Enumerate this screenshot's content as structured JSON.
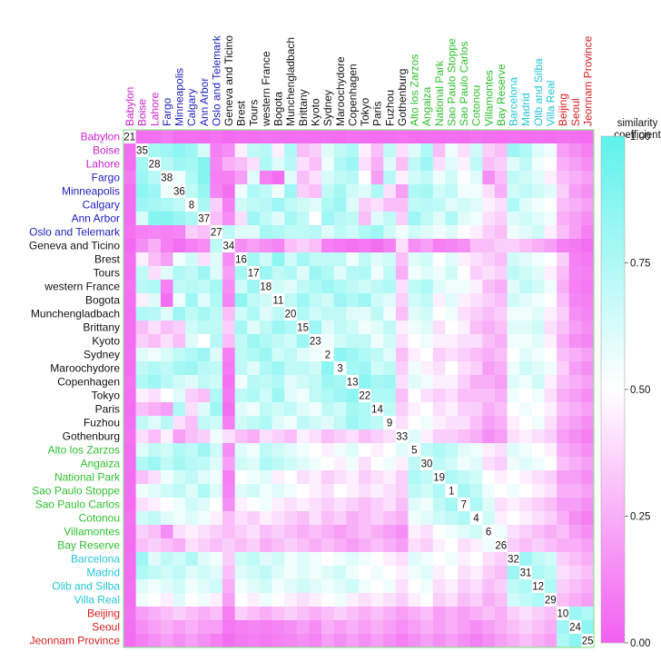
{
  "chart_data": {
    "type": "heatmap",
    "title": "",
    "legend": {
      "title_line1": "similarity",
      "title_line2": "coefficient",
      "ticks": [
        "1.00",
        "0.75",
        "0.50",
        "0.25",
        "0.00"
      ],
      "range": [
        0,
        1
      ],
      "color_high": "#5ef2ec",
      "color_mid": "#ffffff",
      "color_low": "#f25ff0"
    },
    "group_colors": {
      "magenta": "#cc22cc",
      "blue": "#1f1fbf",
      "black": "#111111",
      "green": "#2fbf2f",
      "cyan": "#22c6d6",
      "red": "#d41f1f"
    },
    "labels": [
      {
        "name": "Babylon",
        "group": "magenta",
        "diag": "21"
      },
      {
        "name": "Boise",
        "group": "magenta",
        "diag": "35"
      },
      {
        "name": "Lahore",
        "group": "magenta",
        "diag": "28"
      },
      {
        "name": "Fargo",
        "group": "blue",
        "diag": "38"
      },
      {
        "name": "Minneapolis",
        "group": "blue",
        "diag": "36"
      },
      {
        "name": "Calgary",
        "group": "blue",
        "diag": "8"
      },
      {
        "name": "Ann Arbor",
        "group": "blue",
        "diag": "37"
      },
      {
        "name": "Oslo and Telemark",
        "group": "blue",
        "diag": "27"
      },
      {
        "name": "Geneva and Ticino",
        "group": "black",
        "diag": "34"
      },
      {
        "name": "Brest",
        "group": "black",
        "diag": "16"
      },
      {
        "name": "Tours",
        "group": "black",
        "diag": "17"
      },
      {
        "name": "western France",
        "group": "black",
        "diag": "18"
      },
      {
        "name": "Bogota",
        "group": "black",
        "diag": "11"
      },
      {
        "name": "Munchengladbach",
        "group": "black",
        "diag": "20"
      },
      {
        "name": "Brittany",
        "group": "black",
        "diag": "15"
      },
      {
        "name": "Kyoto",
        "group": "black",
        "diag": "23"
      },
      {
        "name": "Sydney",
        "group": "black",
        "diag": "2"
      },
      {
        "name": "Maroochydore",
        "group": "black",
        "diag": "3"
      },
      {
        "name": "Copenhagen",
        "group": "black",
        "diag": "13"
      },
      {
        "name": "Tokyo",
        "group": "black",
        "diag": "22"
      },
      {
        "name": "Paris",
        "group": "black",
        "diag": "14"
      },
      {
        "name": "Fuzhou",
        "group": "black",
        "diag": "9"
      },
      {
        "name": "Gothenburg",
        "group": "black",
        "diag": "33"
      },
      {
        "name": "Alto los Zarzos",
        "group": "green",
        "diag": "5"
      },
      {
        "name": "Angaiza",
        "group": "green",
        "diag": "30"
      },
      {
        "name": "National Park",
        "group": "green",
        "diag": "19"
      },
      {
        "name": "Sao Paulo Stoppe",
        "group": "green",
        "diag": "1"
      },
      {
        "name": "Sao Paulo Carlos",
        "group": "green",
        "diag": "7"
      },
      {
        "name": "Cotonou",
        "group": "green",
        "diag": "4"
      },
      {
        "name": "Villamontes",
        "group": "green",
        "diag": "6"
      },
      {
        "name": "Bay Reserve",
        "group": "green",
        "diag": "26"
      },
      {
        "name": "Barcelona",
        "group": "cyan",
        "diag": "32"
      },
      {
        "name": "Madrid",
        "group": "cyan",
        "diag": "31"
      },
      {
        "name": "Olib and Silba",
        "group": "cyan",
        "diag": "12"
      },
      {
        "name": "Villa Real",
        "group": "cyan",
        "diag": "29"
      },
      {
        "name": "Beijing",
        "group": "red",
        "diag": "10"
      },
      {
        "name": "Seoul",
        "group": "red",
        "diag": "24"
      },
      {
        "name": "Jeonnam Province",
        "group": "red",
        "diag": "25"
      }
    ],
    "matrix_note": "Lower-triangle similarity coefficients (0-1), row i lists values for columns 0..i-1; matrix is symmetric; diagonal cells show the sample number.",
    "matrix_lower": [
      [],
      [
        0.05
      ],
      [
        0.05,
        0.78
      ],
      [
        0.08,
        0.8,
        0.72
      ],
      [
        0.04,
        0.85,
        0.8,
        0.55
      ],
      [
        0.05,
        0.8,
        0.78,
        0.75,
        0.7
      ],
      [
        0.04,
        0.62,
        0.88,
        0.88,
        0.82,
        0.76
      ],
      [
        0.06,
        0.1,
        0.12,
        0.1,
        0.12,
        0.35,
        0.3
      ],
      [
        0.03,
        0.15,
        0.25,
        0.1,
        0.05,
        0.1,
        0.14,
        0.7
      ],
      [
        0.05,
        0.45,
        0.3,
        0.2,
        0.55,
        0.65,
        0.4,
        0.6,
        0.15
      ],
      [
        0.04,
        0.7,
        0.4,
        0.6,
        0.75,
        0.7,
        0.8,
        0.6,
        0.2,
        0.78
      ],
      [
        0.06,
        0.72,
        0.75,
        0.1,
        0.7,
        0.72,
        0.7,
        0.78,
        0.15,
        0.65,
        0.8
      ],
      [
        0.05,
        0.45,
        0.6,
        0.05,
        0.55,
        0.8,
        0.6,
        0.75,
        0.12,
        0.85,
        0.7,
        0.65
      ],
      [
        0.04,
        0.75,
        0.72,
        0.6,
        0.8,
        0.7,
        0.78,
        0.7,
        0.3,
        0.65,
        0.75,
        0.6,
        0.7
      ],
      [
        0.05,
        0.3,
        0.4,
        0.3,
        0.35,
        0.65,
        0.7,
        0.7,
        0.35,
        0.78,
        0.6,
        0.7,
        0.8,
        0.75
      ],
      [
        0.04,
        0.35,
        0.3,
        0.4,
        0.3,
        0.6,
        0.5,
        0.72,
        0.3,
        0.7,
        0.8,
        0.75,
        0.7,
        0.65,
        0.8
      ],
      [
        0.05,
        0.6,
        0.55,
        0.62,
        0.7,
        0.75,
        0.8,
        0.6,
        0.1,
        0.7,
        0.75,
        0.8,
        0.65,
        0.7,
        0.6,
        0.55
      ],
      [
        0.04,
        0.7,
        0.75,
        0.7,
        0.78,
        0.8,
        0.72,
        0.7,
        0.08,
        0.7,
        0.6,
        0.75,
        0.8,
        0.7,
        0.7,
        0.65,
        0.85
      ],
      [
        0.06,
        0.75,
        0.8,
        0.72,
        0.65,
        0.6,
        0.7,
        0.65,
        0.06,
        0.55,
        0.72,
        0.7,
        0.75,
        0.6,
        0.65,
        0.7,
        0.8,
        0.78
      ],
      [
        0.05,
        0.45,
        0.4,
        0.5,
        0.6,
        0.35,
        0.3,
        0.75,
        0.08,
        0.7,
        0.75,
        0.65,
        0.8,
        0.6,
        0.55,
        0.7,
        0.75,
        0.8,
        0.85
      ],
      [
        0.04,
        0.3,
        0.25,
        0.2,
        0.75,
        0.4,
        0.6,
        0.8,
        0.05,
        0.6,
        0.55,
        0.7,
        0.65,
        0.7,
        0.6,
        0.55,
        0.7,
        0.65,
        0.78,
        0.75
      ],
      [
        0.05,
        0.7,
        0.6,
        0.72,
        0.4,
        0.3,
        0.7,
        0.65,
        0.1,
        0.65,
        0.7,
        0.75,
        0.6,
        0.55,
        0.7,
        0.65,
        0.6,
        0.7,
        0.8,
        0.75,
        0.7
      ],
      [
        0.06,
        0.4,
        0.3,
        0.45,
        0.2,
        0.3,
        0.35,
        0.55,
        0.4,
        0.3,
        0.25,
        0.4,
        0.35,
        0.3,
        0.45,
        0.4,
        0.3,
        0.35,
        0.4,
        0.3,
        0.35,
        0.4
      ],
      [
        0.04,
        0.6,
        0.7,
        0.65,
        0.75,
        0.7,
        0.8,
        0.65,
        0.15,
        0.6,
        0.55,
        0.7,
        0.65,
        0.6,
        0.55,
        0.5,
        0.45,
        0.55,
        0.6,
        0.5,
        0.45,
        0.5,
        0.6
      ],
      [
        0.05,
        0.75,
        0.8,
        0.7,
        0.78,
        0.72,
        0.7,
        0.6,
        0.2,
        0.65,
        0.6,
        0.75,
        0.7,
        0.65,
        0.6,
        0.55,
        0.5,
        0.45,
        0.55,
        0.4,
        0.5,
        0.55,
        0.45,
        0.7
      ],
      [
        0.04,
        0.3,
        0.4,
        0.55,
        0.65,
        0.7,
        0.6,
        0.55,
        0.1,
        0.5,
        0.55,
        0.6,
        0.45,
        0.5,
        0.4,
        0.45,
        0.35,
        0.4,
        0.45,
        0.35,
        0.4,
        0.45,
        0.35,
        0.75,
        0.7
      ],
      [
        0.05,
        0.55,
        0.6,
        0.65,
        0.7,
        0.6,
        0.75,
        0.6,
        0.12,
        0.6,
        0.65,
        0.55,
        0.6,
        0.55,
        0.5,
        0.45,
        0.4,
        0.5,
        0.45,
        0.4,
        0.45,
        0.4,
        0.35,
        0.7,
        0.65,
        0.75
      ],
      [
        0.04,
        0.4,
        0.45,
        0.5,
        0.55,
        0.65,
        0.6,
        0.5,
        0.15,
        0.45,
        0.5,
        0.55,
        0.45,
        0.4,
        0.45,
        0.4,
        0.35,
        0.4,
        0.35,
        0.3,
        0.35,
        0.4,
        0.3,
        0.6,
        0.55,
        0.7,
        0.78
      ],
      [
        0.06,
        0.65,
        0.7,
        0.6,
        0.55,
        0.6,
        0.55,
        0.45,
        0.3,
        0.4,
        0.35,
        0.45,
        0.4,
        0.35,
        0.3,
        0.4,
        0.3,
        0.35,
        0.25,
        0.3,
        0.35,
        0.3,
        0.25,
        0.55,
        0.6,
        0.65,
        0.7,
        0.75
      ],
      [
        0.05,
        0.35,
        0.3,
        0.15,
        0.4,
        0.45,
        0.4,
        0.35,
        0.3,
        0.35,
        0.4,
        0.3,
        0.35,
        0.3,
        0.25,
        0.3,
        0.25,
        0.2,
        0.25,
        0.3,
        0.25,
        0.2,
        0.15,
        0.45,
        0.4,
        0.5,
        0.55,
        0.6,
        0.65
      ],
      [
        0.04,
        0.3,
        0.35,
        0.3,
        0.25,
        0.4,
        0.35,
        0.3,
        0.35,
        0.3,
        0.35,
        0.25,
        0.3,
        0.35,
        0.3,
        0.25,
        0.3,
        0.25,
        0.2,
        0.25,
        0.3,
        0.25,
        0.2,
        0.4,
        0.35,
        0.45,
        0.5,
        0.4,
        0.45,
        0.55
      ],
      [
        0.05,
        0.8,
        0.6,
        0.7,
        0.65,
        0.75,
        0.6,
        0.55,
        0.35,
        0.65,
        0.7,
        0.6,
        0.65,
        0.55,
        0.6,
        0.55,
        0.5,
        0.55,
        0.6,
        0.55,
        0.5,
        0.45,
        0.4,
        0.6,
        0.55,
        0.5,
        0.55,
        0.45,
        0.5,
        0.4,
        0.35
      ],
      [
        0.04,
        0.75,
        0.7,
        0.65,
        0.7,
        0.6,
        0.65,
        0.6,
        0.3,
        0.6,
        0.65,
        0.7,
        0.6,
        0.55,
        0.6,
        0.55,
        0.6,
        0.65,
        0.55,
        0.5,
        0.55,
        0.5,
        0.45,
        0.55,
        0.6,
        0.45,
        0.5,
        0.4,
        0.45,
        0.35,
        0.3,
        0.8
      ],
      [
        0.05,
        0.6,
        0.55,
        0.6,
        0.65,
        0.55,
        0.6,
        0.65,
        0.25,
        0.55,
        0.6,
        0.65,
        0.55,
        0.6,
        0.65,
        0.6,
        0.55,
        0.6,
        0.65,
        0.55,
        0.5,
        0.55,
        0.4,
        0.5,
        0.55,
        0.4,
        0.45,
        0.35,
        0.4,
        0.3,
        0.35,
        0.7,
        0.75
      ],
      [
        0.04,
        0.55,
        0.5,
        0.45,
        0.6,
        0.5,
        0.55,
        0.45,
        0.2,
        0.5,
        0.45,
        0.55,
        0.5,
        0.45,
        0.4,
        0.45,
        0.5,
        0.55,
        0.45,
        0.4,
        0.45,
        0.4,
        0.35,
        0.45,
        0.5,
        0.35,
        0.4,
        0.3,
        0.35,
        0.25,
        0.3,
        0.65,
        0.7,
        0.75
      ],
      [
        0.06,
        0.2,
        0.25,
        0.3,
        0.35,
        0.3,
        0.25,
        0.3,
        0.1,
        0.35,
        0.3,
        0.25,
        0.3,
        0.35,
        0.3,
        0.25,
        0.3,
        0.35,
        0.3,
        0.25,
        0.3,
        0.25,
        0.2,
        0.25,
        0.3,
        0.2,
        0.25,
        0.2,
        0.25,
        0.3,
        0.25,
        0.35,
        0.4,
        0.35,
        0.3
      ],
      [
        0.05,
        0.15,
        0.2,
        0.25,
        0.2,
        0.25,
        0.2,
        0.2,
        0.08,
        0.1,
        0.12,
        0.1,
        0.12,
        0.15,
        0.2,
        0.15,
        0.25,
        0.2,
        0.25,
        0.2,
        0.25,
        0.2,
        0.15,
        0.2,
        0.25,
        0.2,
        0.25,
        0.2,
        0.15,
        0.2,
        0.25,
        0.3,
        0.35,
        0.3,
        0.25,
        0.8
      ],
      [
        0.04,
        0.1,
        0.15,
        0.2,
        0.15,
        0.2,
        0.15,
        0.1,
        0.05,
        0.08,
        0.1,
        0.08,
        0.1,
        0.12,
        0.15,
        0.12,
        0.2,
        0.15,
        0.2,
        0.15,
        0.2,
        0.15,
        0.1,
        0.15,
        0.2,
        0.15,
        0.2,
        0.15,
        0.1,
        0.15,
        0.2,
        0.25,
        0.3,
        0.25,
        0.2,
        0.75,
        0.85
      ]
    ]
  }
}
